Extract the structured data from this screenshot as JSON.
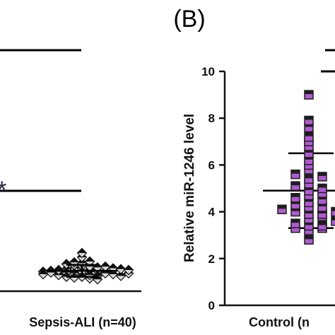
{
  "panel_label": "(B)",
  "significance": "*",
  "colors": {
    "axis": "#111111",
    "line": "#000000",
    "control_fill": "#b05ad0",
    "control_edge": "#1e1e1e",
    "sepsis_fill": "#d8d8d8",
    "sepsis_edge": "#111111"
  },
  "chart_data": [
    {
      "type": "scatter",
      "title": "",
      "xlabel": "",
      "ylabel": "",
      "categories": [
        "Sepsis-ALI (n=40)"
      ],
      "series": [
        {
          "category": "Sepsis-ALI (n=40)",
          "marker": "diamond",
          "values": [
            0.15,
            0.18,
            0.12,
            0.2,
            0.22,
            0.1,
            0.14,
            0.16,
            0.19,
            0.21,
            0.13,
            0.17,
            0.11,
            0.25,
            0.28,
            0.24,
            0.3,
            0.26,
            0.09,
            0.23,
            0.18,
            0.16,
            0.14,
            0.2,
            0.15,
            0.12,
            0.27,
            0.22,
            0.19,
            0.17,
            0.35,
            0.4,
            0.29,
            0.13,
            0.21,
            0.18,
            0.15,
            0.24,
            0.16,
            0.2
          ],
          "mean": 0.19,
          "sd": 0.07
        }
      ]
    },
    {
      "type": "scatter",
      "title": "",
      "xlabel": "",
      "ylabel": "Relative miR-1246 level",
      "ylim": [
        0,
        10
      ],
      "yticks": [
        "0",
        "2",
        "4",
        "6",
        "8",
        "10"
      ],
      "categories": [
        "Control (n"
      ],
      "series": [
        {
          "category": "Control (n",
          "marker": "square",
          "values": [
            3.2,
            3.3,
            3.3,
            3.4,
            3.4,
            3.5,
            3.6,
            3.7,
            3.8,
            3.9,
            3.9,
            4.0,
            4.0,
            4.1,
            4.2,
            4.2,
            4.3,
            4.4,
            4.5,
            4.6,
            4.7,
            4.8,
            4.9,
            5.0,
            5.1,
            5.2,
            5.4,
            5.5,
            5.6,
            5.8,
            6.0,
            6.2,
            6.5,
            6.8,
            7.0,
            7.2,
            7.6,
            7.9,
            9.0,
            2.8
          ],
          "mean": 4.9,
          "sd": 1.6
        }
      ]
    }
  ]
}
